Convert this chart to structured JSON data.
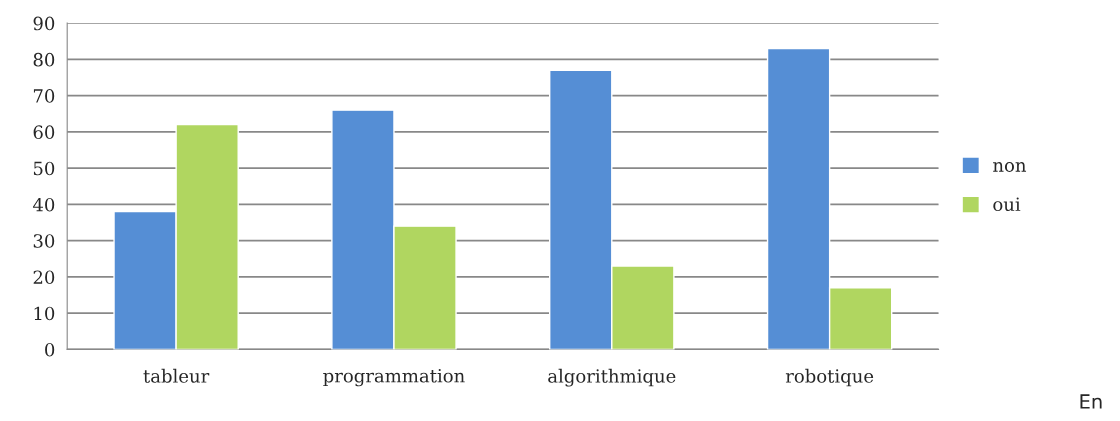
{
  "chart_data": {
    "type": "bar",
    "categories": [
      "tableur",
      "programmation",
      "algorithmique",
      "robotique"
    ],
    "series": [
      {
        "name": "non",
        "color": "#558ed5",
        "values": [
          38,
          66,
          77,
          83
        ]
      },
      {
        "name": "oui",
        "color": "#b0d660",
        "values": [
          62,
          34,
          23,
          17
        ]
      }
    ],
    "ylim": [
      0,
      90
    ],
    "yticks": [
      0,
      10,
      20,
      30,
      40,
      50,
      60,
      70,
      80,
      90
    ],
    "grid": "y",
    "legend": "right",
    "annotations": [
      "En"
    ]
  }
}
